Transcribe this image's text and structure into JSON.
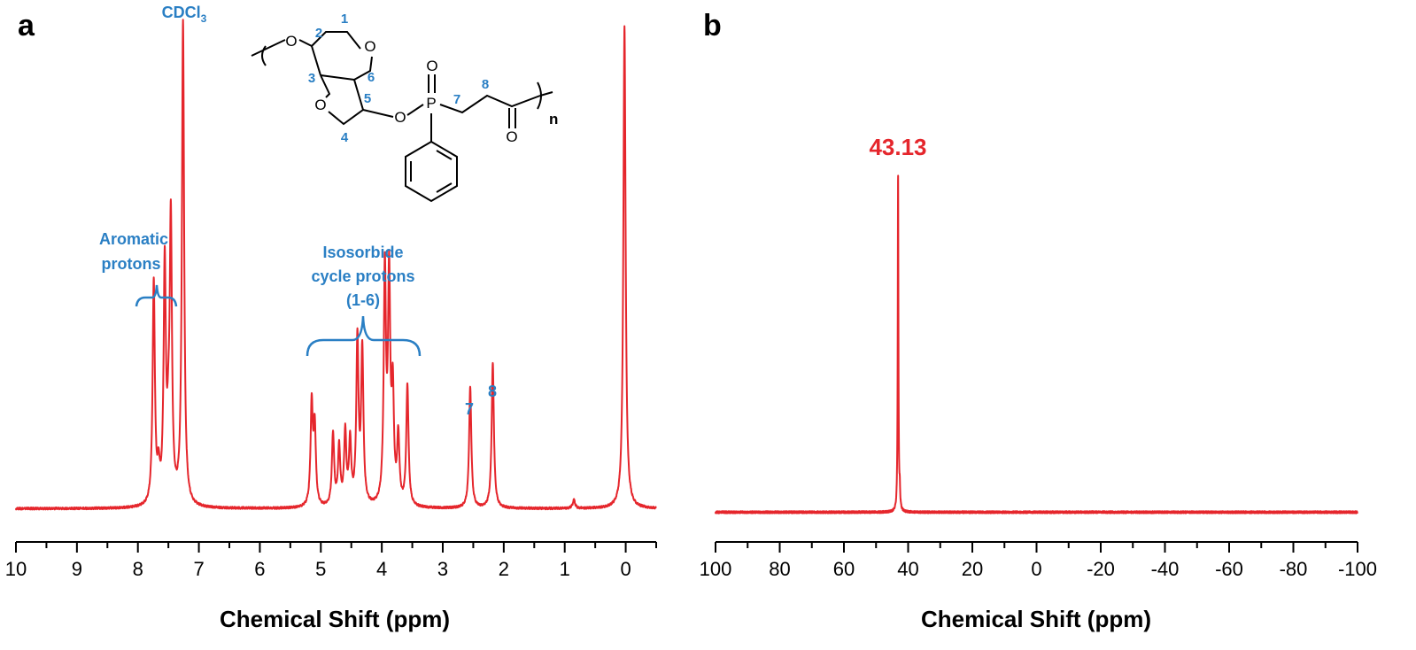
{
  "chart_data": [
    {
      "panel": "a",
      "type": "line",
      "title": "",
      "xlabel": "Chemical Shift (ppm)",
      "ylabel": "",
      "xlim": [
        10,
        -0.5
      ],
      "xticks": [
        "10",
        "9",
        "8",
        "7",
        "6",
        "5",
        "4",
        "3",
        "2",
        "1",
        "0"
      ],
      "series_color": "#e5262c",
      "peaks": [
        {
          "shift": 7.74,
          "intensity": 0.46
        },
        {
          "shift": 7.66,
          "intensity": 0.06
        },
        {
          "shift": 7.56,
          "intensity": 0.49
        },
        {
          "shift": 7.5,
          "intensity": 0.1
        },
        {
          "shift": 7.46,
          "intensity": 0.58
        },
        {
          "shift": 7.26,
          "intensity": 1.0
        },
        {
          "shift": 5.15,
          "intensity": 0.21
        },
        {
          "shift": 5.1,
          "intensity": 0.16
        },
        {
          "shift": 4.8,
          "intensity": 0.15
        },
        {
          "shift": 4.7,
          "intensity": 0.12
        },
        {
          "shift": 4.6,
          "intensity": 0.15
        },
        {
          "shift": 4.52,
          "intensity": 0.13
        },
        {
          "shift": 4.4,
          "intensity": 0.34
        },
        {
          "shift": 4.32,
          "intensity": 0.32
        },
        {
          "shift": 3.95,
          "intensity": 0.48
        },
        {
          "shift": 3.88,
          "intensity": 0.46
        },
        {
          "shift": 3.82,
          "intensity": 0.22
        },
        {
          "shift": 3.73,
          "intensity": 0.14
        },
        {
          "shift": 3.58,
          "intensity": 0.25
        },
        {
          "shift": 2.55,
          "intensity": 0.25
        },
        {
          "shift": 2.18,
          "intensity": 0.3
        },
        {
          "shift": 0.85,
          "intensity": 0.018
        },
        {
          "shift": 0.02,
          "intensity": 1.0
        }
      ],
      "annotations": [
        {
          "text": "CDCl",
          "subscript": "3"
        },
        {
          "text": "Aromatic"
        },
        {
          "text": "protons"
        },
        {
          "text": "Isosorbide"
        },
        {
          "text": "cycle protons"
        },
        {
          "text": "(1-6)"
        },
        {
          "text": "7"
        },
        {
          "text": "8"
        }
      ]
    },
    {
      "panel": "b",
      "type": "line",
      "title": "",
      "xlabel": "Chemical Shift (ppm)",
      "ylabel": "",
      "xlim": [
        100,
        -100
      ],
      "xticks": [
        "100",
        "80",
        "60",
        "40",
        "20",
        "0",
        "-20",
        "-40",
        "-60",
        "-80",
        "-100"
      ],
      "series_color": "#e5262c",
      "peaks": [
        {
          "shift": 43.13,
          "intensity": 1.0
        },
        {
          "shift": 42.6,
          "intensity": 0.05
        }
      ],
      "peak_label": "43.13"
    }
  ],
  "structure": {
    "atoms": [
      "O",
      "O",
      "O",
      "O",
      "P",
      "O",
      "O"
    ],
    "numbers": [
      "1",
      "2",
      "3",
      "4",
      "5",
      "6",
      "7",
      "8"
    ],
    "repeat": "n"
  }
}
